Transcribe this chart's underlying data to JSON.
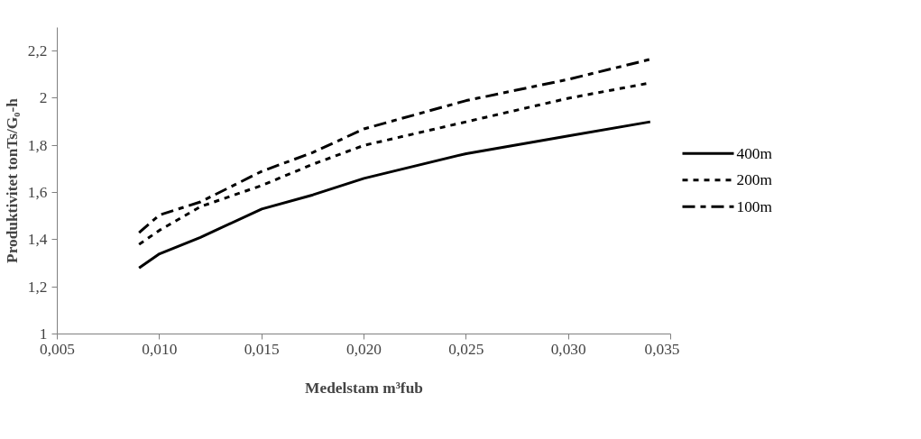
{
  "chart_data": {
    "type": "line",
    "xlabel": "Medelstam m³fub",
    "ylabel": "Produktivitet tonTs/G₀-h",
    "xlim": [
      0.005,
      0.035
    ],
    "xticks": [
      {
        "value": 0.005,
        "label": "0,005"
      },
      {
        "value": 0.01,
        "label": "0,010"
      },
      {
        "value": 0.015,
        "label": "0,015"
      },
      {
        "value": 0.02,
        "label": "0,020"
      },
      {
        "value": 0.025,
        "label": "0,025"
      },
      {
        "value": 0.03,
        "label": "0,030"
      },
      {
        "value": 0.035,
        "label": "0,035"
      }
    ],
    "ylim": [
      1,
      2.3
    ],
    "yticks": [
      1,
      {
        "value": 1.2,
        "label": "1,2"
      },
      {
        "value": 1.4,
        "label": "1,4"
      },
      {
        "value": 1.6,
        "label": "1,6"
      },
      {
        "value": 1.8,
        "label": "1,8"
      },
      2,
      {
        "value": 2.2,
        "label": "2,2"
      }
    ],
    "grid": false,
    "legend": "right",
    "marker": "none",
    "x": [
      0.009,
      0.01,
      0.012,
      0.015,
      0.0175,
      0.02,
      0.025,
      0.03,
      0.034
    ],
    "series": [
      {
        "name": "400m",
        "color": "#000000",
        "line_style": "solid",
        "values": [
          1.28,
          1.34,
          1.41,
          1.53,
          1.59,
          1.66,
          1.765,
          1.84,
          1.9
        ]
      },
      {
        "name": "200m",
        "color": "#000000",
        "line_style": "dotted",
        "values": [
          1.38,
          1.44,
          1.54,
          1.63,
          1.72,
          1.8,
          1.9,
          2.0,
          2.065
        ]
      },
      {
        "name": "100m",
        "color": "#000000",
        "line_style": "dashed",
        "values": [
          1.43,
          1.505,
          1.56,
          1.69,
          1.77,
          1.87,
          1.99,
          2.08,
          2.165
        ]
      }
    ]
  }
}
